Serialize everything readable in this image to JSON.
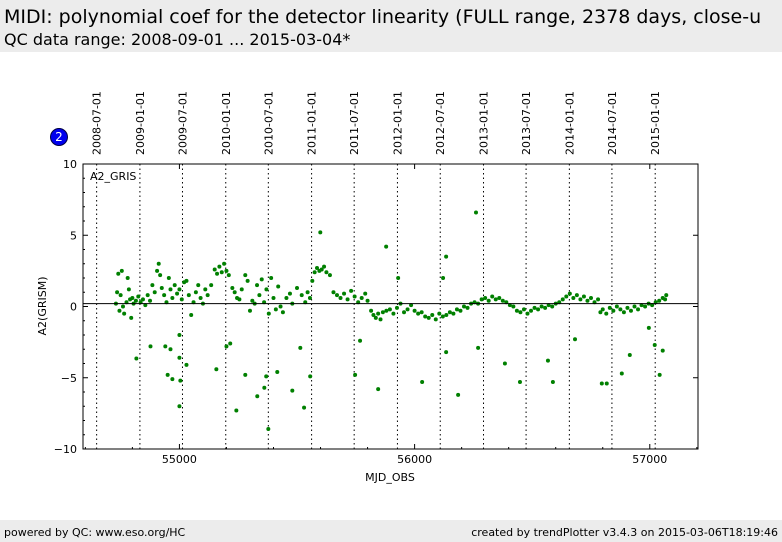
{
  "header": {
    "title": "MIDI: polynomial coef for the detector linearity (FULL range, 2378 days, close-u",
    "subtitle": "QC data range: 2008-09-01 ... 2015-03-04*"
  },
  "footer": {
    "left": "powered by QC: www.eso.org/HC",
    "right": "created by trendPlotter v3.4.3 on 2015-03-06T18:19:46"
  },
  "badge": "2",
  "chart_data": {
    "type": "scatter",
    "panel_label": "A2_GRIS",
    "xlabel": "MJD_OBS",
    "ylabel": "A2(GRISM)",
    "xlim": [
      54590,
      57205
    ],
    "ylim": [
      -10,
      10
    ],
    "xticks": [
      55000,
      56000,
      57000
    ],
    "yticks": [
      -10,
      -5,
      0,
      5,
      10
    ],
    "reference_line": 0.2,
    "marker_color": "#008000",
    "date_markers": [
      {
        "label": "2008-07-01",
        "mjd": 54648
      },
      {
        "label": "2009-01-01",
        "mjd": 54832
      },
      {
        "label": "2009-07-01",
        "mjd": 55013
      },
      {
        "label": "2010-01-01",
        "mjd": 55197
      },
      {
        "label": "2010-07-01",
        "mjd": 55378
      },
      {
        "label": "2011-01-01",
        "mjd": 55562
      },
      {
        "label": "2011-07-01",
        "mjd": 55743
      },
      {
        "label": "2012-01-01",
        "mjd": 55927
      },
      {
        "label": "2012-07-01",
        "mjd": 56109
      },
      {
        "label": "2013-01-01",
        "mjd": 56293
      },
      {
        "label": "2013-07-01",
        "mjd": 56474
      },
      {
        "label": "2014-01-01",
        "mjd": 56658
      },
      {
        "label": "2014-07-01",
        "mjd": 56839
      },
      {
        "label": "2015-01-01",
        "mjd": 57023
      }
    ],
    "points": [
      [
        54730,
        0.2
      ],
      [
        54735,
        1.0
      ],
      [
        54740,
        2.3
      ],
      [
        54745,
        -0.3
      ],
      [
        54750,
        0.8
      ],
      [
        54755,
        2.5
      ],
      [
        54760,
        0.0
      ],
      [
        54765,
        -0.5
      ],
      [
        54775,
        0.3
      ],
      [
        54780,
        2.0
      ],
      [
        54785,
        1.2
      ],
      [
        54790,
        0.5
      ],
      [
        54795,
        -0.8
      ],
      [
        54800,
        0.6
      ],
      [
        54805,
        0.2
      ],
      [
        54815,
        0.4
      ],
      [
        54825,
        0.7
      ],
      [
        54835,
        0.3
      ],
      [
        54845,
        0.5
      ],
      [
        54855,
        0.1
      ],
      [
        54865,
        0.8
      ],
      [
        54875,
        0.4
      ],
      [
        54885,
        1.5
      ],
      [
        54895,
        1.0
      ],
      [
        54905,
        2.5
      ],
      [
        54912,
        3.0
      ],
      [
        54918,
        2.2
      ],
      [
        54925,
        1.3
      ],
      [
        54935,
        0.8
      ],
      [
        54945,
        0.3
      ],
      [
        54955,
        2.0
      ],
      [
        54962,
        1.2
      ],
      [
        54970,
        0.6
      ],
      [
        54980,
        1.5
      ],
      [
        54990,
        0.9
      ],
      [
        55000,
        1.2
      ],
      [
        55010,
        0.5
      ],
      [
        55020,
        1.7
      ],
      [
        55030,
        1.8
      ],
      [
        55040,
        0.8
      ],
      [
        55050,
        -0.6
      ],
      [
        55060,
        0.3
      ],
      [
        55070,
        1.0
      ],
      [
        55080,
        1.5
      ],
      [
        55090,
        0.6
      ],
      [
        55100,
        0.2
      ],
      [
        55110,
        1.2
      ],
      [
        55120,
        0.8
      ],
      [
        55135,
        1.5
      ],
      [
        55150,
        2.6
      ],
      [
        55160,
        2.3
      ],
      [
        55170,
        2.8
      ],
      [
        55180,
        2.4
      ],
      [
        55190,
        3.0
      ],
      [
        55200,
        2.5
      ],
      [
        55210,
        2.2
      ],
      [
        55225,
        1.3
      ],
      [
        55235,
        1.0
      ],
      [
        55245,
        0.6
      ],
      [
        55255,
        0.5
      ],
      [
        55265,
        1.2
      ],
      [
        55280,
        2.2
      ],
      [
        55290,
        1.8
      ],
      [
        55300,
        -0.3
      ],
      [
        55310,
        0.4
      ],
      [
        55320,
        0.2
      ],
      [
        55330,
        1.5
      ],
      [
        55340,
        0.8
      ],
      [
        55350,
        1.9
      ],
      [
        55360,
        0.3
      ],
      [
        55370,
        1.2
      ],
      [
        55380,
        -0.5
      ],
      [
        55390,
        2.0
      ],
      [
        55400,
        0.6
      ],
      [
        55410,
        -0.2
      ],
      [
        55420,
        1.4
      ],
      [
        55430,
        0.0
      ],
      [
        55440,
        -0.4
      ],
      [
        55455,
        0.6
      ],
      [
        55470,
        0.9
      ],
      [
        55480,
        0.2
      ],
      [
        55500,
        1.3
      ],
      [
        55520,
        0.8
      ],
      [
        55535,
        0.3
      ],
      [
        55545,
        1.0
      ],
      [
        55555,
        0.6
      ],
      [
        55565,
        1.8
      ],
      [
        55575,
        2.4
      ],
      [
        55585,
        2.7
      ],
      [
        55595,
        2.5
      ],
      [
        55605,
        2.6
      ],
      [
        55615,
        2.8
      ],
      [
        55625,
        2.4
      ],
      [
        55640,
        2.2
      ],
      [
        55655,
        1.0
      ],
      [
        55670,
        0.8
      ],
      [
        55685,
        0.6
      ],
      [
        55700,
        0.9
      ],
      [
        55715,
        0.5
      ],
      [
        55730,
        1.1
      ],
      [
        55745,
        0.7
      ],
      [
        55760,
        0.3
      ],
      [
        55775,
        0.6
      ],
      [
        55790,
        0.9
      ],
      [
        55800,
        0.4
      ],
      [
        55815,
        -0.3
      ],
      [
        55825,
        -0.6
      ],
      [
        55835,
        -0.8
      ],
      [
        55845,
        -0.5
      ],
      [
        55855,
        -0.9
      ],
      [
        55865,
        -0.4
      ],
      [
        55880,
        -0.3
      ],
      [
        55895,
        -0.2
      ],
      [
        55910,
        -0.5
      ],
      [
        55925,
        -0.1
      ],
      [
        55940,
        0.2
      ],
      [
        55955,
        -0.4
      ],
      [
        55970,
        -0.2
      ],
      [
        55985,
        0.1
      ],
      [
        56000,
        -0.3
      ],
      [
        56015,
        -0.5
      ],
      [
        56030,
        -0.4
      ],
      [
        56045,
        -0.7
      ],
      [
        56060,
        -0.8
      ],
      [
        56075,
        -0.6
      ],
      [
        56090,
        -0.9
      ],
      [
        56105,
        -0.5
      ],
      [
        56120,
        -0.7
      ],
      [
        56135,
        -0.6
      ],
      [
        56150,
        -0.4
      ],
      [
        56165,
        -0.5
      ],
      [
        56180,
        -0.2
      ],
      [
        56195,
        -0.3
      ],
      [
        56210,
        0.0
      ],
      [
        56225,
        -0.1
      ],
      [
        56240,
        0.2
      ],
      [
        56255,
        0.3
      ],
      [
        56270,
        0.2
      ],
      [
        56285,
        0.5
      ],
      [
        56300,
        0.6
      ],
      [
        56315,
        0.4
      ],
      [
        56330,
        0.7
      ],
      [
        56345,
        0.5
      ],
      [
        56360,
        0.6
      ],
      [
        56375,
        0.4
      ],
      [
        56390,
        0.3
      ],
      [
        56405,
        0.1
      ],
      [
        56420,
        0.0
      ],
      [
        56435,
        -0.3
      ],
      [
        56450,
        -0.4
      ],
      [
        56465,
        -0.2
      ],
      [
        56480,
        -0.5
      ],
      [
        56495,
        -0.3
      ],
      [
        56510,
        -0.1
      ],
      [
        56525,
        -0.2
      ],
      [
        56540,
        0.0
      ],
      [
        56555,
        -0.1
      ],
      [
        56570,
        0.1
      ],
      [
        56585,
        0.0
      ],
      [
        56600,
        0.2
      ],
      [
        56615,
        0.3
      ],
      [
        56630,
        0.5
      ],
      [
        56645,
        0.7
      ],
      [
        56660,
        0.9
      ],
      [
        56675,
        0.6
      ],
      [
        56690,
        0.8
      ],
      [
        56705,
        0.5
      ],
      [
        56720,
        0.7
      ],
      [
        56735,
        0.4
      ],
      [
        56750,
        0.6
      ],
      [
        56765,
        0.3
      ],
      [
        56780,
        0.5
      ],
      [
        56790,
        -0.4
      ],
      [
        56800,
        -0.2
      ],
      [
        56815,
        -0.5
      ],
      [
        56830,
        -0.1
      ],
      [
        56845,
        -0.3
      ],
      [
        56860,
        0.0
      ],
      [
        56875,
        -0.2
      ],
      [
        56890,
        -0.4
      ],
      [
        56905,
        -0.1
      ],
      [
        56920,
        -0.3
      ],
      [
        56935,
        0.0
      ],
      [
        56950,
        -0.2
      ],
      [
        56965,
        0.1
      ],
      [
        56980,
        0.0
      ],
      [
        56995,
        0.2
      ],
      [
        57010,
        0.1
      ],
      [
        57025,
        0.3
      ],
      [
        57040,
        0.4
      ],
      [
        57055,
        0.6
      ],
      [
        57065,
        0.5
      ],
      [
        57070,
        0.8
      ],
      [
        54817,
        -3.65
      ],
      [
        54877,
        -2.8
      ],
      [
        54940,
        -2.8
      ],
      [
        54962,
        -3.0
      ],
      [
        54950,
        -4.8
      ],
      [
        54970,
        -5.1
      ],
      [
        55000,
        -7.0
      ],
      [
        55004,
        -5.2
      ],
      [
        55000,
        -3.6
      ],
      [
        55000,
        -2.0
      ],
      [
        55030,
        -4.1
      ],
      [
        55157,
        -4.4
      ],
      [
        55200,
        -2.8
      ],
      [
        55216,
        -2.6
      ],
      [
        55242,
        -7.3
      ],
      [
        55280,
        -4.8
      ],
      [
        55331,
        -6.3
      ],
      [
        55361,
        -5.7
      ],
      [
        55369,
        -4.9
      ],
      [
        55378,
        -8.6
      ],
      [
        55416,
        -4.6
      ],
      [
        55480,
        -5.9
      ],
      [
        55514,
        -2.9
      ],
      [
        55530,
        -7.1
      ],
      [
        55556,
        -4.9
      ],
      [
        55599,
        5.2
      ],
      [
        55747,
        -4.8
      ],
      [
        55768,
        -2.4
      ],
      [
        55845,
        -5.8
      ],
      [
        55879,
        4.2
      ],
      [
        55930,
        2.0
      ],
      [
        56032,
        -5.3
      ],
      [
        56134,
        -3.2
      ],
      [
        56134,
        3.5
      ],
      [
        56121,
        2.0
      ],
      [
        56185,
        -6.2
      ],
      [
        56261,
        6.6
      ],
      [
        56270,
        -2.9
      ],
      [
        56384,
        -4.0
      ],
      [
        56448,
        -5.3
      ],
      [
        56567,
        -3.8
      ],
      [
        56588,
        -5.3
      ],
      [
        56682,
        -2.3
      ],
      [
        56796,
        -5.4
      ],
      [
        56817,
        -5.4
      ],
      [
        56881,
        -4.7
      ],
      [
        56915,
        -3.4
      ],
      [
        56996,
        -1.5
      ],
      [
        57021,
        -2.7
      ],
      [
        57042,
        -4.8
      ],
      [
        57055,
        -3.1
      ]
    ]
  }
}
